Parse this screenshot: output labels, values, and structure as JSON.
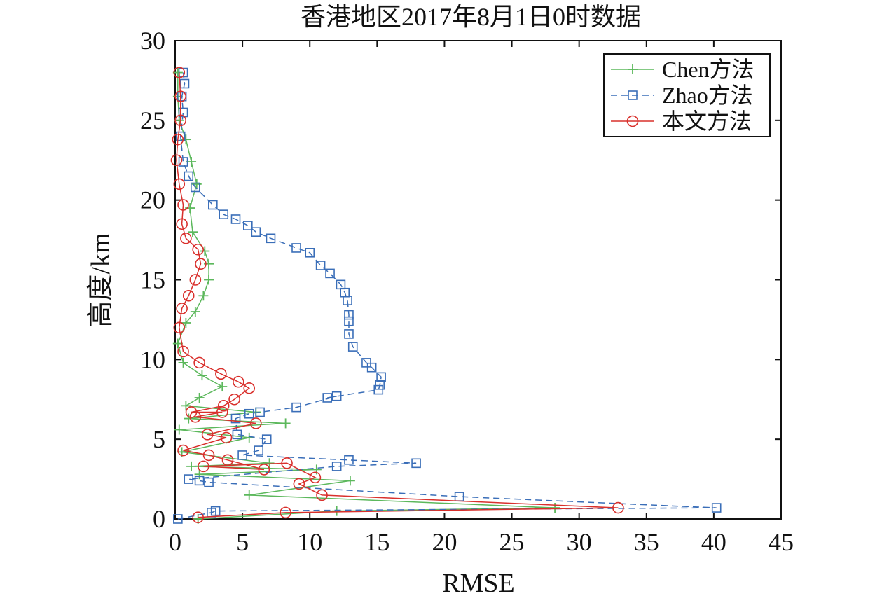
{
  "chart_data": {
    "type": "line",
    "title": "香港地区2017年8月1日0时数据",
    "xlabel": "RMSE",
    "ylabel": "高度/km",
    "xlim": [
      0,
      45
    ],
    "ylim": [
      0,
      30
    ],
    "xticks": [
      "0",
      "5",
      "10",
      "15",
      "20",
      "25",
      "30",
      "35",
      "40",
      "45"
    ],
    "yticks": [
      "0",
      "5",
      "10",
      "15",
      "20",
      "25",
      "30"
    ],
    "legend_position": "top-right",
    "grid": false,
    "series": [
      {
        "name": "Chen方法",
        "color": "#5cb85c",
        "marker": "plus",
        "dash": "solid",
        "points": [
          [
            1.7,
            0.0
          ],
          [
            12.0,
            0.5
          ],
          [
            28.2,
            0.7
          ],
          [
            5.5,
            1.5
          ],
          [
            13.0,
            2.4
          ],
          [
            1.8,
            2.8
          ],
          [
            10.5,
            3.1
          ],
          [
            1.2,
            3.3
          ],
          [
            7.0,
            3.5
          ],
          [
            0.5,
            4.2
          ],
          [
            5.5,
            5.1
          ],
          [
            0.3,
            5.6
          ],
          [
            8.2,
            6.0
          ],
          [
            1.0,
            6.3
          ],
          [
            6.0,
            6.7
          ],
          [
            0.8,
            7.1
          ],
          [
            1.8,
            7.6
          ],
          [
            3.5,
            8.3
          ],
          [
            2.0,
            9.0
          ],
          [
            0.6,
            9.8
          ],
          [
            0.2,
            11.0
          ],
          [
            0.8,
            12.3
          ],
          [
            1.5,
            13.0
          ],
          [
            2.1,
            14.0
          ],
          [
            2.5,
            15.0
          ],
          [
            2.5,
            16.0
          ],
          [
            2.2,
            16.8
          ],
          [
            1.3,
            18.0
          ],
          [
            1.1,
            19.5
          ],
          [
            1.6,
            21.0
          ],
          [
            1.2,
            22.4
          ],
          [
            0.8,
            23.8
          ],
          [
            0.3,
            25.0
          ],
          [
            0.2,
            26.5
          ],
          [
            0.2,
            28.0
          ]
        ]
      },
      {
        "name": "Zhao方法",
        "color": "#3a6eb8",
        "marker": "square",
        "dash": "dashed",
        "points": [
          [
            0.2,
            0.0
          ],
          [
            2.7,
            0.4
          ],
          [
            3.0,
            0.5
          ],
          [
            40.2,
            0.7
          ],
          [
            21.1,
            1.4
          ],
          [
            2.5,
            2.3
          ],
          [
            1.8,
            2.4
          ],
          [
            1.0,
            2.5
          ],
          [
            12.0,
            3.3
          ],
          [
            17.9,
            3.5
          ],
          [
            12.9,
            3.7
          ],
          [
            5.0,
            4.0
          ],
          [
            6.2,
            4.3
          ],
          [
            6.8,
            5.0
          ],
          [
            4.6,
            5.3
          ],
          [
            4.5,
            6.3
          ],
          [
            5.5,
            6.6
          ],
          [
            6.3,
            6.7
          ],
          [
            9.0,
            7.0
          ],
          [
            12.0,
            7.7
          ],
          [
            11.3,
            7.6
          ],
          [
            15.1,
            8.1
          ],
          [
            15.2,
            8.4
          ],
          [
            15.3,
            8.9
          ],
          [
            14.6,
            9.5
          ],
          [
            14.2,
            9.8
          ],
          [
            13.2,
            10.8
          ],
          [
            12.9,
            11.6
          ],
          [
            12.9,
            12.4
          ],
          [
            12.9,
            12.8
          ],
          [
            12.8,
            13.7
          ],
          [
            12.6,
            14.2
          ],
          [
            12.3,
            14.7
          ],
          [
            11.5,
            15.4
          ],
          [
            10.8,
            15.9
          ],
          [
            10.0,
            16.7
          ],
          [
            9.0,
            17.0
          ],
          [
            7.1,
            17.6
          ],
          [
            6.0,
            18.0
          ],
          [
            5.4,
            18.4
          ],
          [
            4.5,
            18.8
          ],
          [
            3.6,
            19.1
          ],
          [
            2.8,
            19.7
          ],
          [
            1.5,
            20.8
          ],
          [
            1.0,
            21.5
          ],
          [
            0.6,
            22.4
          ],
          [
            0.4,
            24.0
          ],
          [
            0.6,
            25.5
          ],
          [
            0.5,
            26.5
          ],
          [
            0.7,
            27.3
          ],
          [
            0.6,
            28.0
          ]
        ]
      },
      {
        "name": "本文方法",
        "color": "#d9302c",
        "marker": "circle",
        "dash": "solid",
        "points": [
          [
            1.7,
            0.1
          ],
          [
            8.2,
            0.4
          ],
          [
            32.9,
            0.7
          ],
          [
            10.9,
            1.5
          ],
          [
            9.2,
            2.2
          ],
          [
            10.4,
            2.6
          ],
          [
            8.3,
            3.5
          ],
          [
            2.1,
            3.3
          ],
          [
            6.6,
            3.1
          ],
          [
            3.9,
            3.7
          ],
          [
            2.5,
            4.0
          ],
          [
            0.6,
            4.3
          ],
          [
            3.8,
            5.1
          ],
          [
            2.4,
            5.3
          ],
          [
            6.0,
            6.0
          ],
          [
            1.5,
            6.4
          ],
          [
            3.5,
            6.7
          ],
          [
            1.2,
            6.7
          ],
          [
            3.6,
            7.1
          ],
          [
            4.4,
            7.5
          ],
          [
            5.5,
            8.2
          ],
          [
            4.7,
            8.6
          ],
          [
            3.4,
            9.1
          ],
          [
            1.8,
            9.8
          ],
          [
            0.6,
            10.5
          ],
          [
            0.3,
            12.0
          ],
          [
            0.5,
            13.2
          ],
          [
            1.0,
            14.0
          ],
          [
            1.5,
            15.0
          ],
          [
            1.9,
            16.0
          ],
          [
            1.7,
            16.9
          ],
          [
            0.8,
            17.6
          ],
          [
            0.5,
            18.5
          ],
          [
            0.6,
            19.7
          ],
          [
            0.3,
            21.0
          ],
          [
            0.1,
            22.5
          ],
          [
            0.2,
            23.8
          ],
          [
            0.4,
            25.0
          ],
          [
            0.4,
            26.5
          ],
          [
            0.3,
            28.0
          ]
        ]
      }
    ]
  }
}
